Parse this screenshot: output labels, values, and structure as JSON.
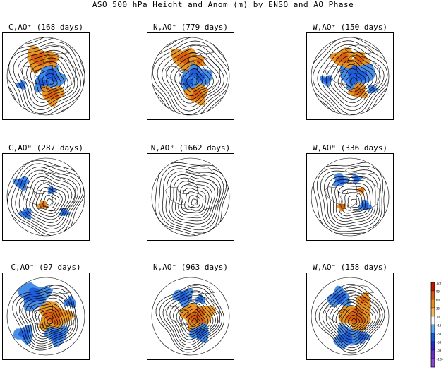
{
  "title": "ASO 500 hPa Height and Anom (m) by ENSO and AO Phase",
  "colors": {
    "deep_blue": "#1c58d8",
    "blue": "#3f87e6",
    "light_blue": "#5aa7f4",
    "orange": "#e8901e",
    "dark_orange": "#d65a10",
    "contour": "#000000",
    "coast": "#000000"
  },
  "chart_data": {
    "type": "heatmap",
    "title": "ASO 500 hPa Height and Anom (m) by ENSO and AO Phase",
    "rows": [
      "AO+",
      "AO0",
      "AO-"
    ],
    "columns": [
      "C",
      "N",
      "W"
    ],
    "panels": [
      {
        "label": "C,AO⁺ (168 days)",
        "enso": "C",
        "ao": "+",
        "days": 168,
        "anomalies": [
          {
            "kind": "neg",
            "lon": 90,
            "lat": 78,
            "r": 0.22
          },
          {
            "kind": "neg",
            "lon": 200,
            "lat": 72,
            "r": 0.16
          },
          {
            "kind": "pos",
            "lon": 340,
            "lat": 47,
            "r": 0.22
          },
          {
            "kind": "pos",
            "lon": 160,
            "lat": 45,
            "r": 0.18
          },
          {
            "kind": "pos",
            "lon": 20,
            "lat": 50,
            "r": 0.12
          },
          {
            "kind": "neg",
            "lon": 250,
            "lat": 30,
            "r": 0.08
          }
        ]
      },
      {
        "label": "N,AO⁺ (779 days)",
        "enso": "N",
        "ao": "+",
        "days": 779,
        "anomalies": [
          {
            "kind": "neg",
            "lon": 90,
            "lat": 78,
            "r": 0.24
          },
          {
            "kind": "neg",
            "lon": 200,
            "lat": 75,
            "r": 0.14
          },
          {
            "kind": "pos",
            "lon": 340,
            "lat": 45,
            "r": 0.2
          },
          {
            "kind": "pos",
            "lon": 160,
            "lat": 45,
            "r": 0.18
          },
          {
            "kind": "pos",
            "lon": 30,
            "lat": 50,
            "r": 0.1
          }
        ]
      },
      {
        "label": "W,AO⁺ (150 days)",
        "enso": "W",
        "ao": "+",
        "days": 150,
        "anomalies": [
          {
            "kind": "neg",
            "lon": 80,
            "lat": 75,
            "r": 0.28
          },
          {
            "kind": "neg",
            "lon": 260,
            "lat": 35,
            "r": 0.1
          },
          {
            "kind": "pos",
            "lon": 340,
            "lat": 45,
            "r": 0.18
          },
          {
            "kind": "pos",
            "lon": 150,
            "lat": 50,
            "r": 0.14
          },
          {
            "kind": "pos",
            "lon": 30,
            "lat": 45,
            "r": 0.14
          },
          {
            "kind": "neg",
            "lon": 120,
            "lat": 30,
            "r": 0.08
          }
        ]
      },
      {
        "label": "C,AO⁰ (287 days)",
        "enso": "C",
        "ao": "0",
        "days": 287,
        "anomalies": [
          {
            "kind": "neg",
            "lon": 300,
            "lat": 25,
            "r": 0.12
          },
          {
            "kind": "neg",
            "lon": 230,
            "lat": 30,
            "r": 0.1
          },
          {
            "kind": "pos",
            "lon": 200,
            "lat": 70,
            "r": 0.08
          },
          {
            "kind": "neg",
            "lon": 130,
            "lat": 35,
            "r": 0.08
          },
          {
            "kind": "neg",
            "lon": 40,
            "lat": 70,
            "r": 0.07
          }
        ]
      },
      {
        "label": "N,AO⁰ (1662 days)",
        "enso": "N",
        "ao": "0",
        "days": 1662,
        "anomalies": []
      },
      {
        "label": "W,AO⁰ (336 days)",
        "enso": "W",
        "ao": "0",
        "days": 336,
        "anomalies": [
          {
            "kind": "neg",
            "lon": 120,
            "lat": 50,
            "r": 0.1
          },
          {
            "kind": "neg",
            "lon": 330,
            "lat": 45,
            "r": 0.12
          },
          {
            "kind": "neg",
            "lon": 20,
            "lat": 45,
            "r": 0.08
          },
          {
            "kind": "pos",
            "lon": 220,
            "lat": 60,
            "r": 0.07
          },
          {
            "kind": "pos",
            "lon": 60,
            "lat": 60,
            "r": 0.06
          }
        ]
      },
      {
        "label": "C,AO⁻ (97 days)",
        "enso": "C",
        "ao": "-",
        "days": 97,
        "anomalies": [
          {
            "kind": "pos",
            "lon": 90,
            "lat": 72,
            "r": 0.26
          },
          {
            "kind": "neg",
            "lon": 330,
            "lat": 35,
            "r": 0.25
          },
          {
            "kind": "neg",
            "lon": 150,
            "lat": 40,
            "r": 0.18
          },
          {
            "kind": "neg",
            "lon": 230,
            "lat": 25,
            "r": 0.16
          },
          {
            "kind": "neg",
            "lon": 60,
            "lat": 25,
            "r": 0.1
          }
        ]
      },
      {
        "label": "N,AO⁻ (963 days)",
        "enso": "N",
        "ao": "-",
        "days": 963,
        "anomalies": [
          {
            "kind": "pos",
            "lon": 90,
            "lat": 75,
            "r": 0.26
          },
          {
            "kind": "neg",
            "lon": 340,
            "lat": 42,
            "r": 0.16
          },
          {
            "kind": "neg",
            "lon": 150,
            "lat": 45,
            "r": 0.16
          },
          {
            "kind": "neg",
            "lon": 30,
            "lat": 45,
            "r": 0.08
          }
        ]
      },
      {
        "label": "W,AO⁻ (158 days)",
        "enso": "W",
        "ao": "-",
        "days": 158,
        "anomalies": [
          {
            "kind": "pos",
            "lon": 90,
            "lat": 75,
            "r": 0.26
          },
          {
            "kind": "pos",
            "lon": 40,
            "lat": 40,
            "r": 0.12
          },
          {
            "kind": "neg",
            "lon": 330,
            "lat": 40,
            "r": 0.18
          },
          {
            "kind": "neg",
            "lon": 190,
            "lat": 40,
            "r": 0.2
          },
          {
            "kind": "neg",
            "lon": 150,
            "lat": 35,
            "r": 0.12
          }
        ]
      }
    ],
    "colorbar": {
      "labels": [
        "120",
        "90",
        "60",
        "30",
        "10",
        "-10",
        "-30",
        "-60",
        "-90",
        "-120"
      ],
      "colors": [
        "#c01800",
        "#d65a10",
        "#e8901e",
        "#f2b860",
        "#ffffff",
        "#5aa7f4",
        "#1c58d8",
        "#2a2ac8",
        "#6a30c8",
        "#8e44d8"
      ]
    }
  }
}
